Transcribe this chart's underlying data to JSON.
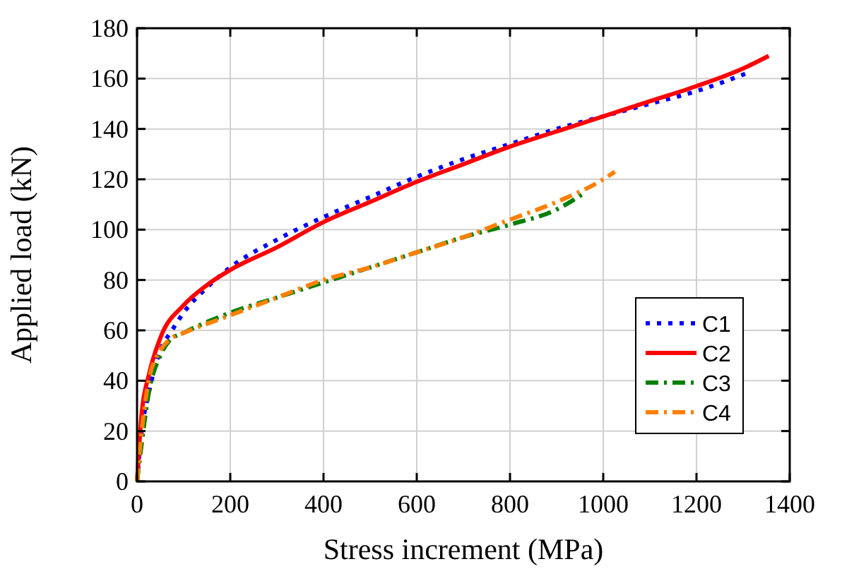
{
  "chart_data": {
    "type": "line",
    "xlabel": "Stress increment (MPa)",
    "ylabel": "Applied load (kN)",
    "xlim": [
      0,
      1400
    ],
    "xticks": [
      0,
      200,
      400,
      600,
      800,
      1000,
      1200,
      1400
    ],
    "ylim": [
      0,
      180
    ],
    "yticks": [
      0,
      20,
      40,
      60,
      80,
      100,
      120,
      140,
      160,
      180
    ],
    "grid": true,
    "legend": "bottom right",
    "series": [
      {
        "name": "C1",
        "color": "#0000ff",
        "line_style": "dotted",
        "x": [
          0,
          10,
          25,
          50,
          75,
          100,
          150,
          200,
          300,
          400,
          500,
          600,
          700,
          800,
          900,
          1000,
          1100,
          1200,
          1306
        ],
        "values": [
          0,
          20,
          35,
          52,
          60,
          67,
          77,
          85,
          96,
          105,
          113,
          121,
          128,
          134,
          140,
          145,
          150,
          155,
          162
        ]
      },
      {
        "name": "C2",
        "color": "#ff0000",
        "line_style": "solid",
        "x": [
          0,
          5,
          10,
          25,
          50,
          100,
          150,
          200,
          300,
          400,
          500,
          600,
          700,
          800,
          900,
          1000,
          1100,
          1200,
          1300,
          1355
        ],
        "values": [
          0,
          15,
          27,
          42,
          57,
          70,
          78,
          84,
          93,
          103,
          111,
          119,
          126,
          133,
          139,
          145,
          151,
          157,
          164,
          169
        ]
      },
      {
        "name": "C3",
        "color": "#008000",
        "line_style": "dashed",
        "x": [
          0,
          10,
          25,
          50,
          70,
          100,
          200,
          300,
          400,
          500,
          600,
          700,
          800,
          900,
          955
        ],
        "values": [
          0,
          15,
          35,
          50,
          56,
          59,
          67,
          73,
          79,
          85,
          91,
          97,
          102,
          108,
          114
        ]
      },
      {
        "name": "C4",
        "color": "#ff8000",
        "line_style": "dashed",
        "x": [
          0,
          10,
          25,
          50,
          75,
          100,
          200,
          300,
          400,
          500,
          600,
          700,
          800,
          900,
          1000,
          1025
        ],
        "values": [
          0,
          20,
          40,
          52,
          57,
          59,
          66,
          73,
          80,
          85,
          91,
          97,
          104,
          111,
          120,
          123
        ]
      }
    ]
  }
}
